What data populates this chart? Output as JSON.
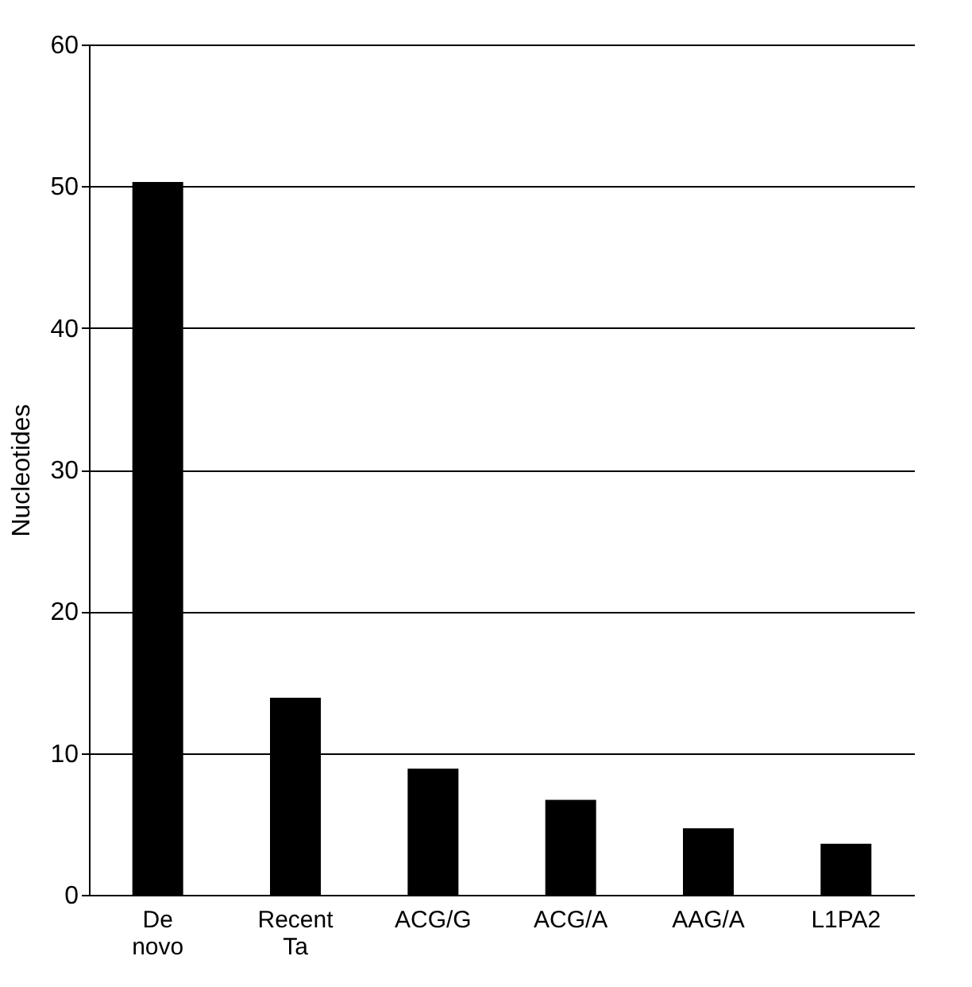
{
  "chart_data": {
    "type": "bar",
    "ylabel": "Nucleotides",
    "categories": [
      "De novo",
      "Recent Ta",
      "ACG/G",
      "ACG/A",
      "AAG/A",
      "L1PA2"
    ],
    "values": [
      50.3,
      13.9,
      8.9,
      6.7,
      4.7,
      3.6
    ],
    "color": "#000000",
    "ylim": [
      0,
      60
    ],
    "yticks": [
      0,
      10,
      20,
      30,
      40,
      50,
      60
    ],
    "grid": "y"
  }
}
